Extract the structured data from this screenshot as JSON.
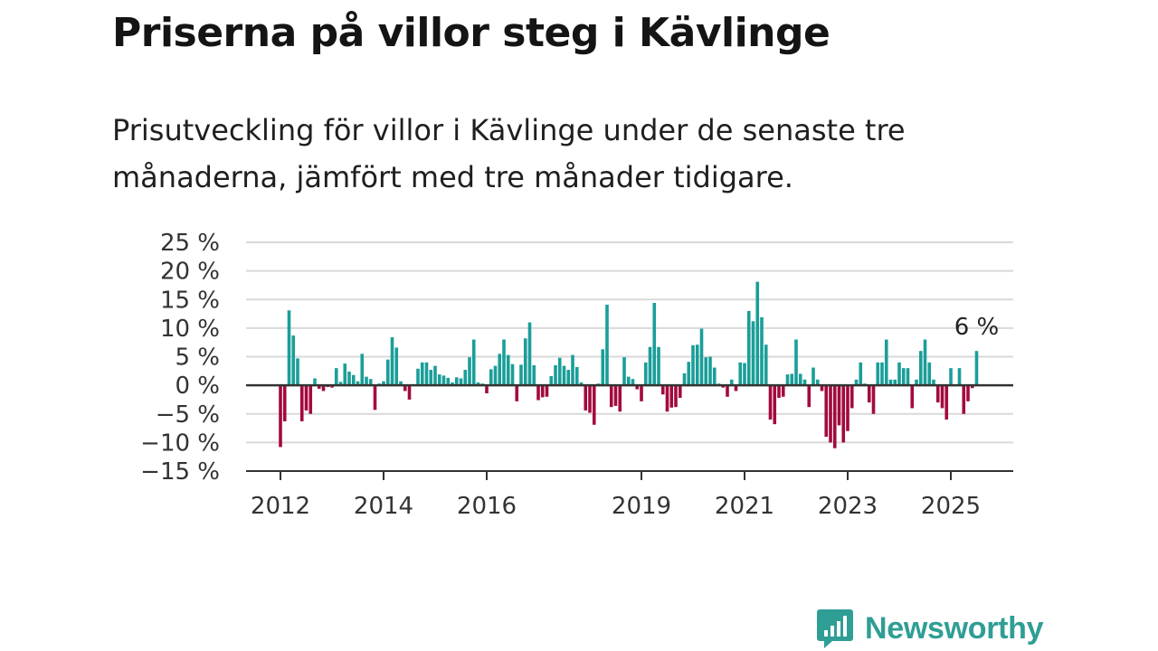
{
  "title": "Priserna på villor steg i Kävlinge",
  "subtitle": "Prisutveckling för villor i Kävlinge under de senaste tre månaderna, jämfört med tre månader tidigare.",
  "brand": {
    "name": "Newsworthy",
    "icon": "newsworthy-logo-icon"
  },
  "colors": {
    "positive": "#1a9e99",
    "negative": "#a3093f",
    "grid": "#d9d9d9",
    "axis": "#333333",
    "brand": "#2f9e95"
  },
  "chart_data": {
    "type": "bar",
    "title": "Priserna på villor steg i Kävlinge",
    "xlabel": "",
    "ylabel": "",
    "ylim": [
      -15,
      25
    ],
    "grid": true,
    "y_ticks": [
      "25 %",
      "20 %",
      "15 %",
      "10 %",
      "5 %",
      "0 %",
      "−5 %",
      "−10 %",
      "−15 %"
    ],
    "y_tick_values": [
      25,
      20,
      15,
      10,
      5,
      0,
      -5,
      -10,
      -15
    ],
    "x_ticks": [
      "2012",
      "2014",
      "2016",
      "2019",
      "2021",
      "2023",
      "2025"
    ],
    "x_tick_values": [
      2012,
      2014,
      2016,
      2019,
      2021,
      2023,
      2025
    ],
    "start": "2012-01",
    "frequency": "monthly",
    "annotation": {
      "label": "6 %",
      "period": "2025-07"
    },
    "values": [
      -10.8,
      -6.3,
      13.1,
      8.7,
      4.7,
      -6.3,
      -4.4,
      -5.0,
      1.2,
      -0.6,
      -1.0,
      -0.3,
      -0.4,
      3.0,
      0.6,
      3.8,
      2.4,
      1.8,
      0.7,
      5.5,
      1.5,
      1.1,
      -4.3,
      0.3,
      0.7,
      4.5,
      8.4,
      6.6,
      0.7,
      -1.0,
      -2.5,
      0.2,
      2.9,
      4.0,
      4.0,
      2.7,
      3.4,
      1.9,
      1.7,
      1.3,
      0.5,
      1.4,
      1.2,
      2.7,
      4.9,
      8.0,
      0.5,
      0.3,
      -1.4,
      2.8,
      3.4,
      5.5,
      8.0,
      5.3,
      3.7,
      -2.8,
      3.6,
      8.2,
      11.0,
      3.5,
      -2.6,
      -2.1,
      -2.0,
      1.6,
      3.5,
      4.8,
      3.4,
      2.7,
      5.3,
      3.2,
      0.5,
      -4.4,
      -4.8,
      -6.9,
      0.3,
      6.3,
      14.1,
      -3.8,
      -3.6,
      -4.6,
      4.9,
      1.5,
      1.1,
      -0.7,
      -2.8,
      4.0,
      6.7,
      14.4,
      6.7,
      -1.6,
      -4.6,
      -3.9,
      -3.8,
      -2.2,
      2.1,
      4.1,
      7.0,
      7.1,
      9.9,
      4.9,
      5.0,
      3.1,
      0.3,
      -0.4,
      -2.0,
      1.0,
      -1.0,
      4.0,
      3.9,
      13.0,
      11.2,
      18.1,
      11.9,
      7.1,
      -6.0,
      -6.8,
      -2.2,
      -2.0,
      1.9,
      2.0,
      8.0,
      2.0,
      1.0,
      -3.8,
      3.1,
      1.0,
      -1.0,
      -9.0,
      -10.0,
      -11.0,
      -7.0,
      -10.0,
      -8.0,
      -4.0,
      1.0,
      4.0,
      0.3,
      -3.0,
      -5.0,
      4.0,
      4.0,
      8.0,
      1.0,
      1.0,
      4.0,
      3.0,
      3.0,
      -4.0,
      1.0,
      6.0,
      8.0,
      4.0,
      1.0,
      -3.0,
      -4.0,
      -6.0,
      3.0,
      0.0,
      3.0,
      -5.0,
      -2.8,
      -0.5,
      6.0
    ]
  }
}
